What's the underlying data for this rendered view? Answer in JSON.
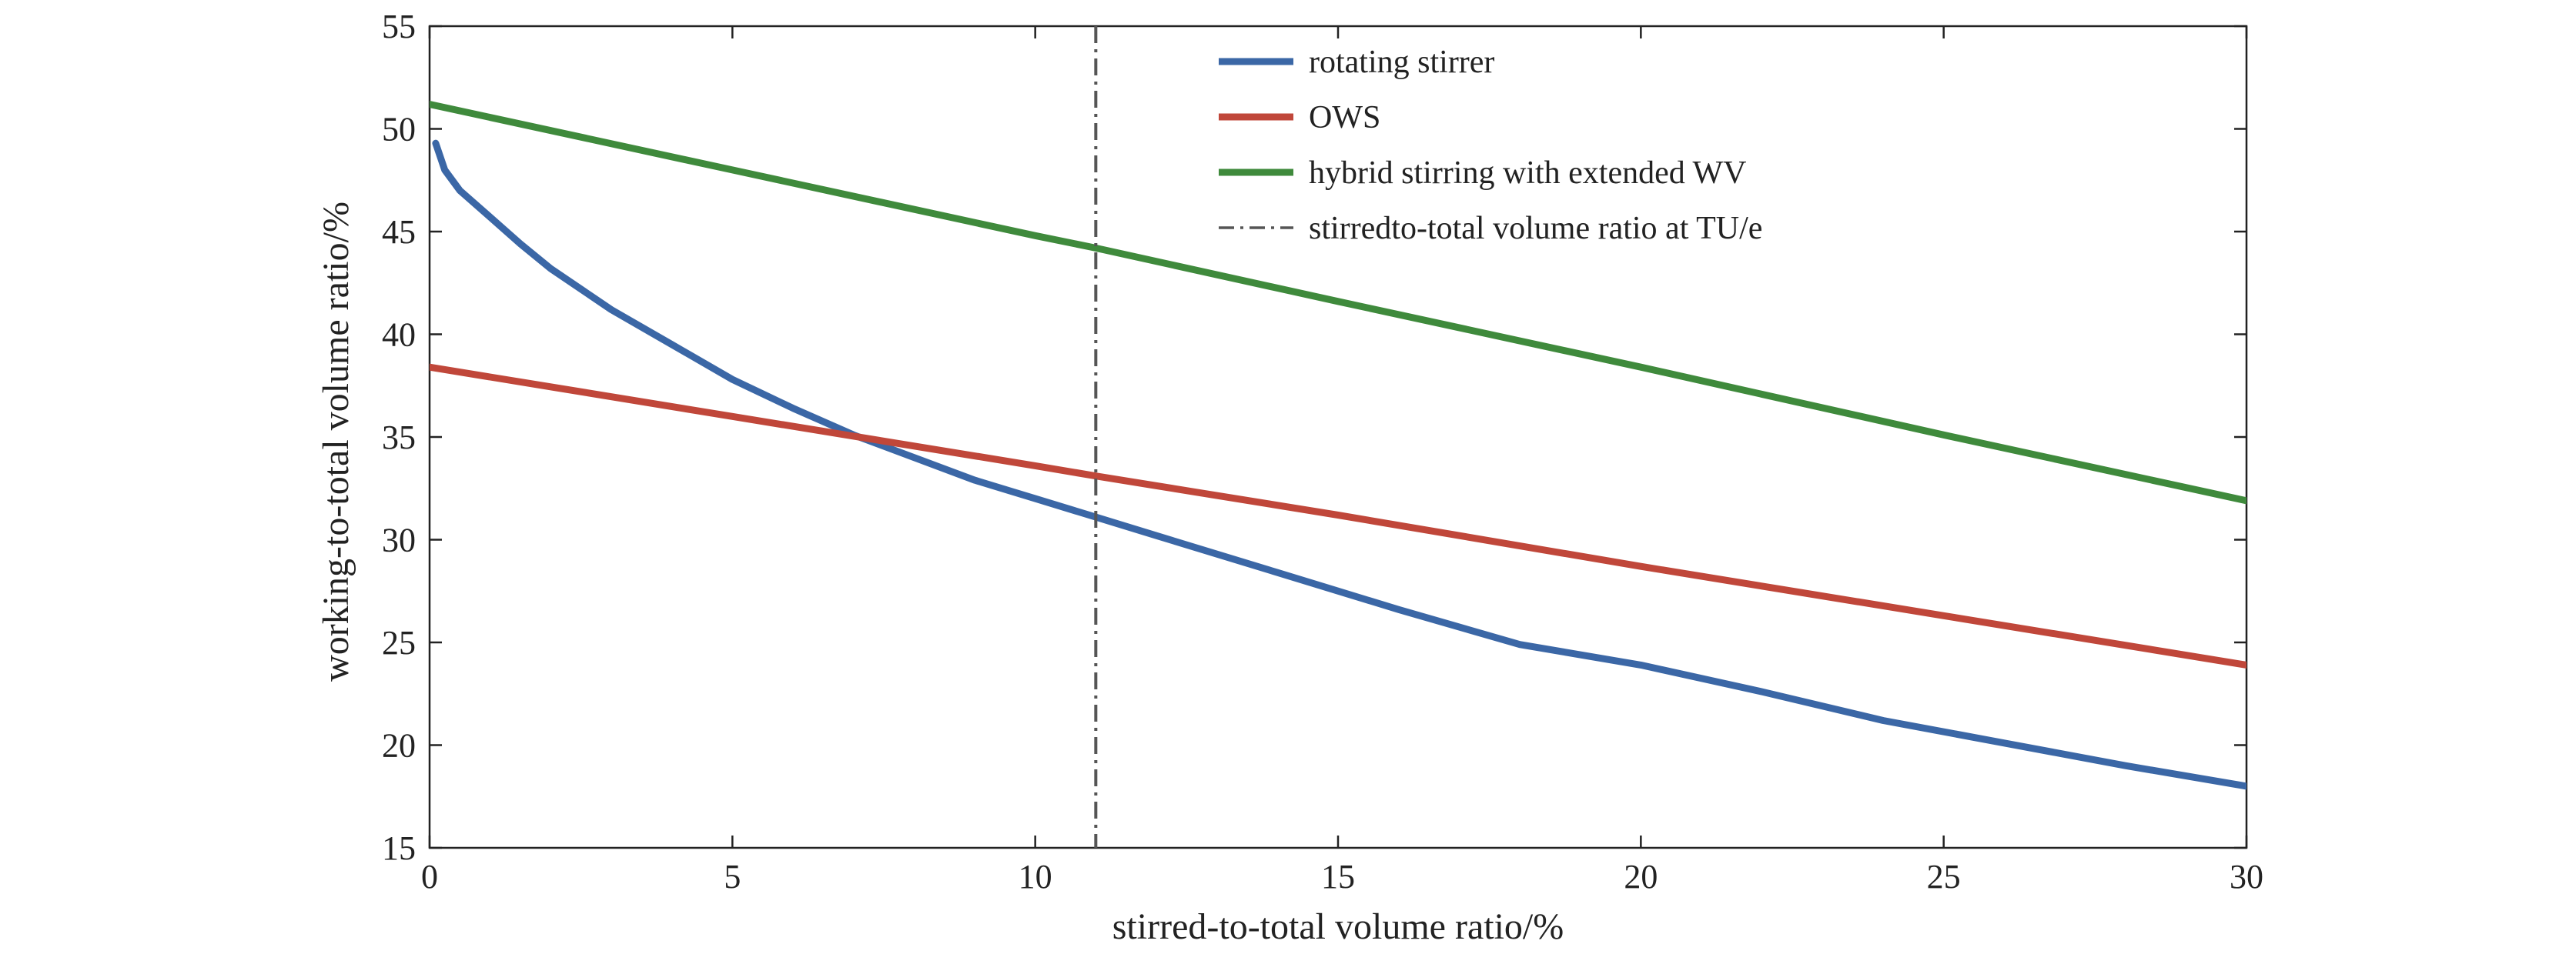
{
  "chart_data": {
    "type": "line",
    "xlabel": "stirred-to-total volume ratio/%",
    "ylabel": "working-to-total volume ratio/%",
    "xlim": [
      0,
      30
    ],
    "ylim": [
      15,
      55
    ],
    "xticks": [
      "0",
      "5",
      "10",
      "15",
      "20",
      "25",
      "30"
    ],
    "yticks": [
      "15",
      "20",
      "25",
      "30",
      "35",
      "40",
      "45",
      "50",
      "55"
    ],
    "grid": false,
    "legend_position": "top-center",
    "series": [
      {
        "name": "rotating stirrer",
        "color": "#3b67a6",
        "x": [
          0.1,
          0.25,
          0.5,
          1,
          1.5,
          2,
          3,
          4,
          5,
          6,
          7,
          8,
          9,
          10,
          11,
          12,
          14,
          16,
          18,
          20,
          22,
          24,
          26,
          28,
          30
        ],
        "y": [
          49.3,
          48.0,
          47.0,
          45.7,
          44.4,
          43.2,
          41.2,
          39.5,
          37.8,
          36.4,
          35.1,
          34.0,
          32.9,
          32.0,
          31.1,
          30.2,
          28.4,
          26.6,
          24.9,
          23.9,
          22.6,
          21.2,
          20.1,
          19.0,
          18.0
        ]
      },
      {
        "name": "OWS",
        "color": "#c0473a",
        "x": [
          0,
          5,
          10,
          11,
          15,
          20,
          25,
          30
        ],
        "y": [
          38.4,
          36.0,
          33.6,
          33.1,
          31.2,
          28.7,
          26.3,
          23.9
        ]
      },
      {
        "name": "hybrid stirring with extended WV",
        "color": "#3f8a3c",
        "x": [
          0,
          5,
          10,
          11,
          15,
          20,
          25,
          30
        ],
        "y": [
          51.2,
          48.0,
          44.8,
          44.2,
          41.6,
          38.4,
          35.1,
          31.9
        ]
      },
      {
        "name": "stirredto-total volume ratio at TU/e",
        "color": "#555555",
        "style": "dash-dot",
        "vertical_at_x": 11
      }
    ]
  }
}
